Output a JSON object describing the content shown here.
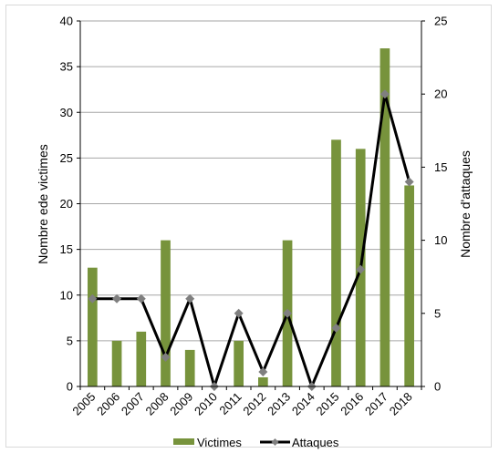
{
  "chart_data": {
    "type": "bar+line",
    "categories": [
      "2005",
      "2006",
      "2007",
      "2008",
      "2009",
      "2010",
      "2011",
      "2012",
      "2013",
      "2014",
      "2015",
      "2016",
      "2017",
      "2018"
    ],
    "series": [
      {
        "name": "Victimes",
        "type": "bar",
        "axis": "left",
        "values": [
          13,
          5,
          6,
          16,
          4,
          0,
          5,
          1,
          16,
          0,
          27,
          26,
          37,
          22
        ],
        "color": "#77933c"
      },
      {
        "name": "Attaques",
        "type": "line",
        "axis": "right",
        "values": [
          6,
          6,
          6,
          2,
          6,
          0,
          5,
          1,
          5,
          0,
          4,
          8,
          20,
          14
        ],
        "color": "#000000",
        "marker_color": "#7f7f7f"
      }
    ],
    "ylabel_left": "Nombre ede victimes",
    "ylabel_right": "Nombre d'attaques",
    "ylim_left": [
      0,
      40
    ],
    "yticks_left": [
      "0",
      "5",
      "10",
      "15",
      "20",
      "25",
      "30",
      "35",
      "40"
    ],
    "ylim_right": [
      0,
      25
    ],
    "yticks_right": [
      "0",
      "5",
      "10",
      "15",
      "20",
      "25"
    ],
    "grid": true,
    "legend_position": "bottom",
    "legend": [
      "Victimes",
      "Attaques"
    ]
  }
}
